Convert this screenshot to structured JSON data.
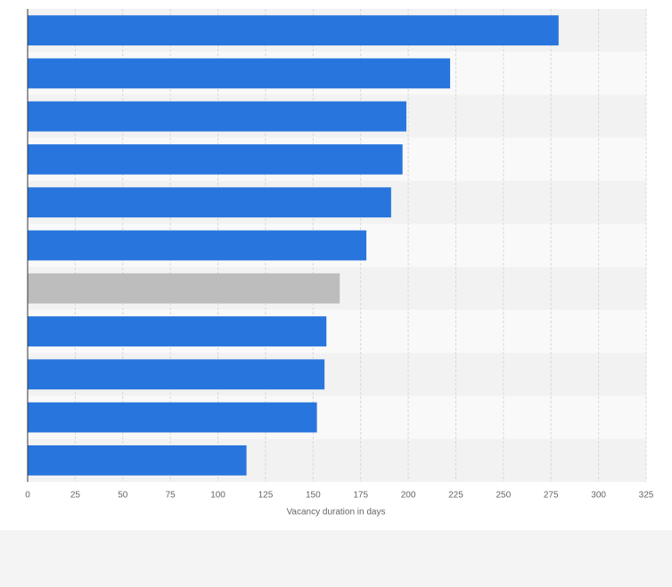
{
  "chart_data": {
    "type": "bar",
    "orientation": "horizontal",
    "categories": [
      null,
      null,
      null,
      null,
      null,
      null,
      null,
      null,
      null,
      null,
      null
    ],
    "values": [
      279,
      222,
      199,
      197,
      191,
      178,
      164,
      157,
      156,
      152,
      115
    ],
    "colors": [
      "#2876dd",
      "#2876dd",
      "#2876dd",
      "#2876dd",
      "#2876dd",
      "#2876dd",
      "#bdbdbd",
      "#2876dd",
      "#2876dd",
      "#2876dd",
      "#2876dd"
    ],
    "xlabel": "Vacancy duration in days",
    "xlim": [
      0,
      325
    ],
    "xticks": [
      0,
      25,
      50,
      75,
      100,
      125,
      150,
      175,
      200,
      225,
      250,
      275,
      300,
      325
    ],
    "grid": true
  }
}
